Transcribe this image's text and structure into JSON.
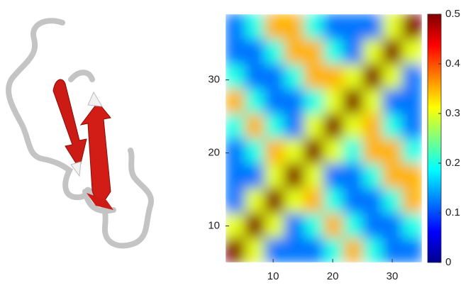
{
  "chart_data": {
    "type": "heatmap",
    "colormap": "jet",
    "x": [
      3.65,
      6.95,
      10.25,
      13.55,
      16.85,
      20.15,
      23.45,
      26.75,
      30.05,
      33.35
    ],
    "y": [
      6.7,
      10.1,
      13.5,
      16.9,
      20.3,
      23.7,
      27.1,
      30.5,
      33.9,
      37.3
    ],
    "z": [
      [
        0.5,
        0.3,
        0.12,
        0.12,
        0.12,
        0.2,
        0.35,
        0.2,
        0.12,
        0.12
      ],
      [
        0.3,
        0.5,
        0.3,
        0.12,
        0.2,
        0.35,
        0.2,
        0.12,
        0.12,
        0.2
      ],
      [
        0.12,
        0.3,
        0.5,
        0.3,
        0.35,
        0.2,
        0.12,
        0.12,
        0.2,
        0.35
      ],
      [
        0.12,
        0.12,
        0.3,
        0.5,
        0.3,
        0.12,
        0.12,
        0.2,
        0.35,
        0.35
      ],
      [
        0.12,
        0.2,
        0.35,
        0.3,
        0.5,
        0.3,
        0.2,
        0.35,
        0.35,
        0.2
      ],
      [
        0.2,
        0.35,
        0.2,
        0.12,
        0.3,
        0.5,
        0.3,
        0.35,
        0.2,
        0.12
      ],
      [
        0.35,
        0.2,
        0.12,
        0.12,
        0.2,
        0.3,
        0.5,
        0.3,
        0.12,
        0.12
      ],
      [
        0.2,
        0.12,
        0.12,
        0.2,
        0.35,
        0.35,
        0.3,
        0.5,
        0.3,
        0.12
      ],
      [
        0.12,
        0.12,
        0.2,
        0.35,
        0.35,
        0.2,
        0.12,
        0.3,
        0.5,
        0.3
      ],
      [
        0.12,
        0.2,
        0.35,
        0.35,
        0.2,
        0.12,
        0.12,
        0.12,
        0.3,
        0.5
      ]
    ],
    "xlim": [
      2,
      35
    ],
    "ylim": [
      5,
      39
    ],
    "xticks": [
      10,
      20,
      30
    ],
    "yticks": [
      10,
      20,
      30
    ],
    "zlim": [
      0,
      0.5
    ],
    "zticks": [
      0,
      0.1,
      0.2,
      0.3,
      0.4,
      0.5
    ]
  }
}
